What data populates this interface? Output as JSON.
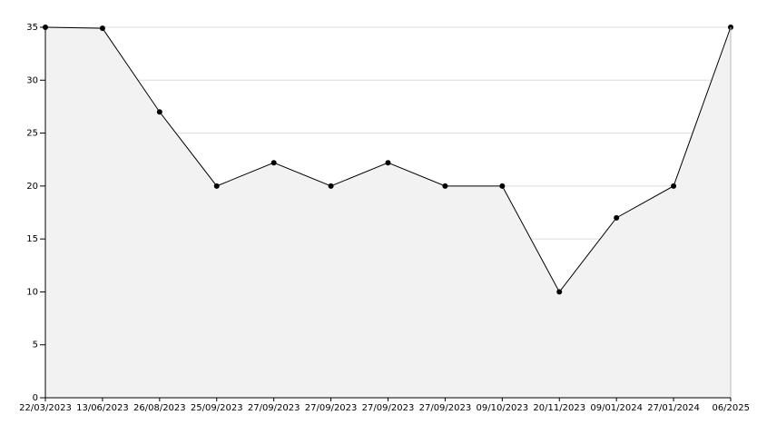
{
  "chart_data": {
    "type": "area",
    "categories": [
      "22/03/2023",
      "13/06/2023",
      "26/08/2023",
      "25/09/2023",
      "27/09/2023",
      "27/09/2023",
      "27/09/2023",
      "27/09/2023",
      "09/10/2023",
      "20/11/2023",
      "09/01/2024",
      "27/01/2024",
      "06/2025"
    ],
    "values": [
      35,
      34.9,
      27,
      20,
      22.2,
      20,
      22.2,
      20,
      20,
      10,
      17,
      20,
      35
    ],
    "color": "#000000",
    "fill": "#f2f2f2",
    "ylim": [
      0,
      35
    ],
    "yticks": [
      0,
      5,
      10,
      15,
      20,
      25,
      30,
      35
    ],
    "grid": true
  }
}
